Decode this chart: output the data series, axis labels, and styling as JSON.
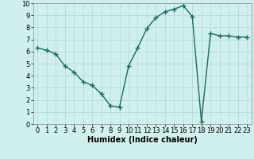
{
  "x": [
    0,
    1,
    2,
    3,
    4,
    5,
    6,
    7,
    8,
    9,
    10,
    11,
    12,
    13,
    14,
    15,
    16,
    17,
    18,
    19,
    20,
    21,
    22,
    23
  ],
  "y": [
    6.3,
    6.1,
    5.8,
    4.8,
    4.3,
    3.5,
    3.2,
    2.5,
    1.5,
    1.4,
    4.8,
    6.3,
    7.9,
    8.8,
    9.3,
    9.5,
    9.8,
    8.9,
    0.2,
    7.5,
    7.3,
    7.3,
    7.2,
    7.2
  ],
  "line_color": "#1a6b5e",
  "marker": "+",
  "markersize": 4,
  "linewidth": 1.0,
  "background_color": "#cff0ec",
  "grid_color": "#b8dbd7",
  "xlabel": "Humidex (Indice chaleur)",
  "xlabel_fontsize": 7,
  "tick_fontsize": 6,
  "xlim": [
    -0.5,
    23.5
  ],
  "ylim": [
    0,
    10
  ],
  "yticks": [
    0,
    1,
    2,
    3,
    4,
    5,
    6,
    7,
    8,
    9,
    10
  ],
  "xticks": [
    0,
    1,
    2,
    3,
    4,
    5,
    6,
    7,
    8,
    9,
    10,
    11,
    12,
    13,
    14,
    15,
    16,
    17,
    18,
    19,
    20,
    21,
    22,
    23
  ]
}
